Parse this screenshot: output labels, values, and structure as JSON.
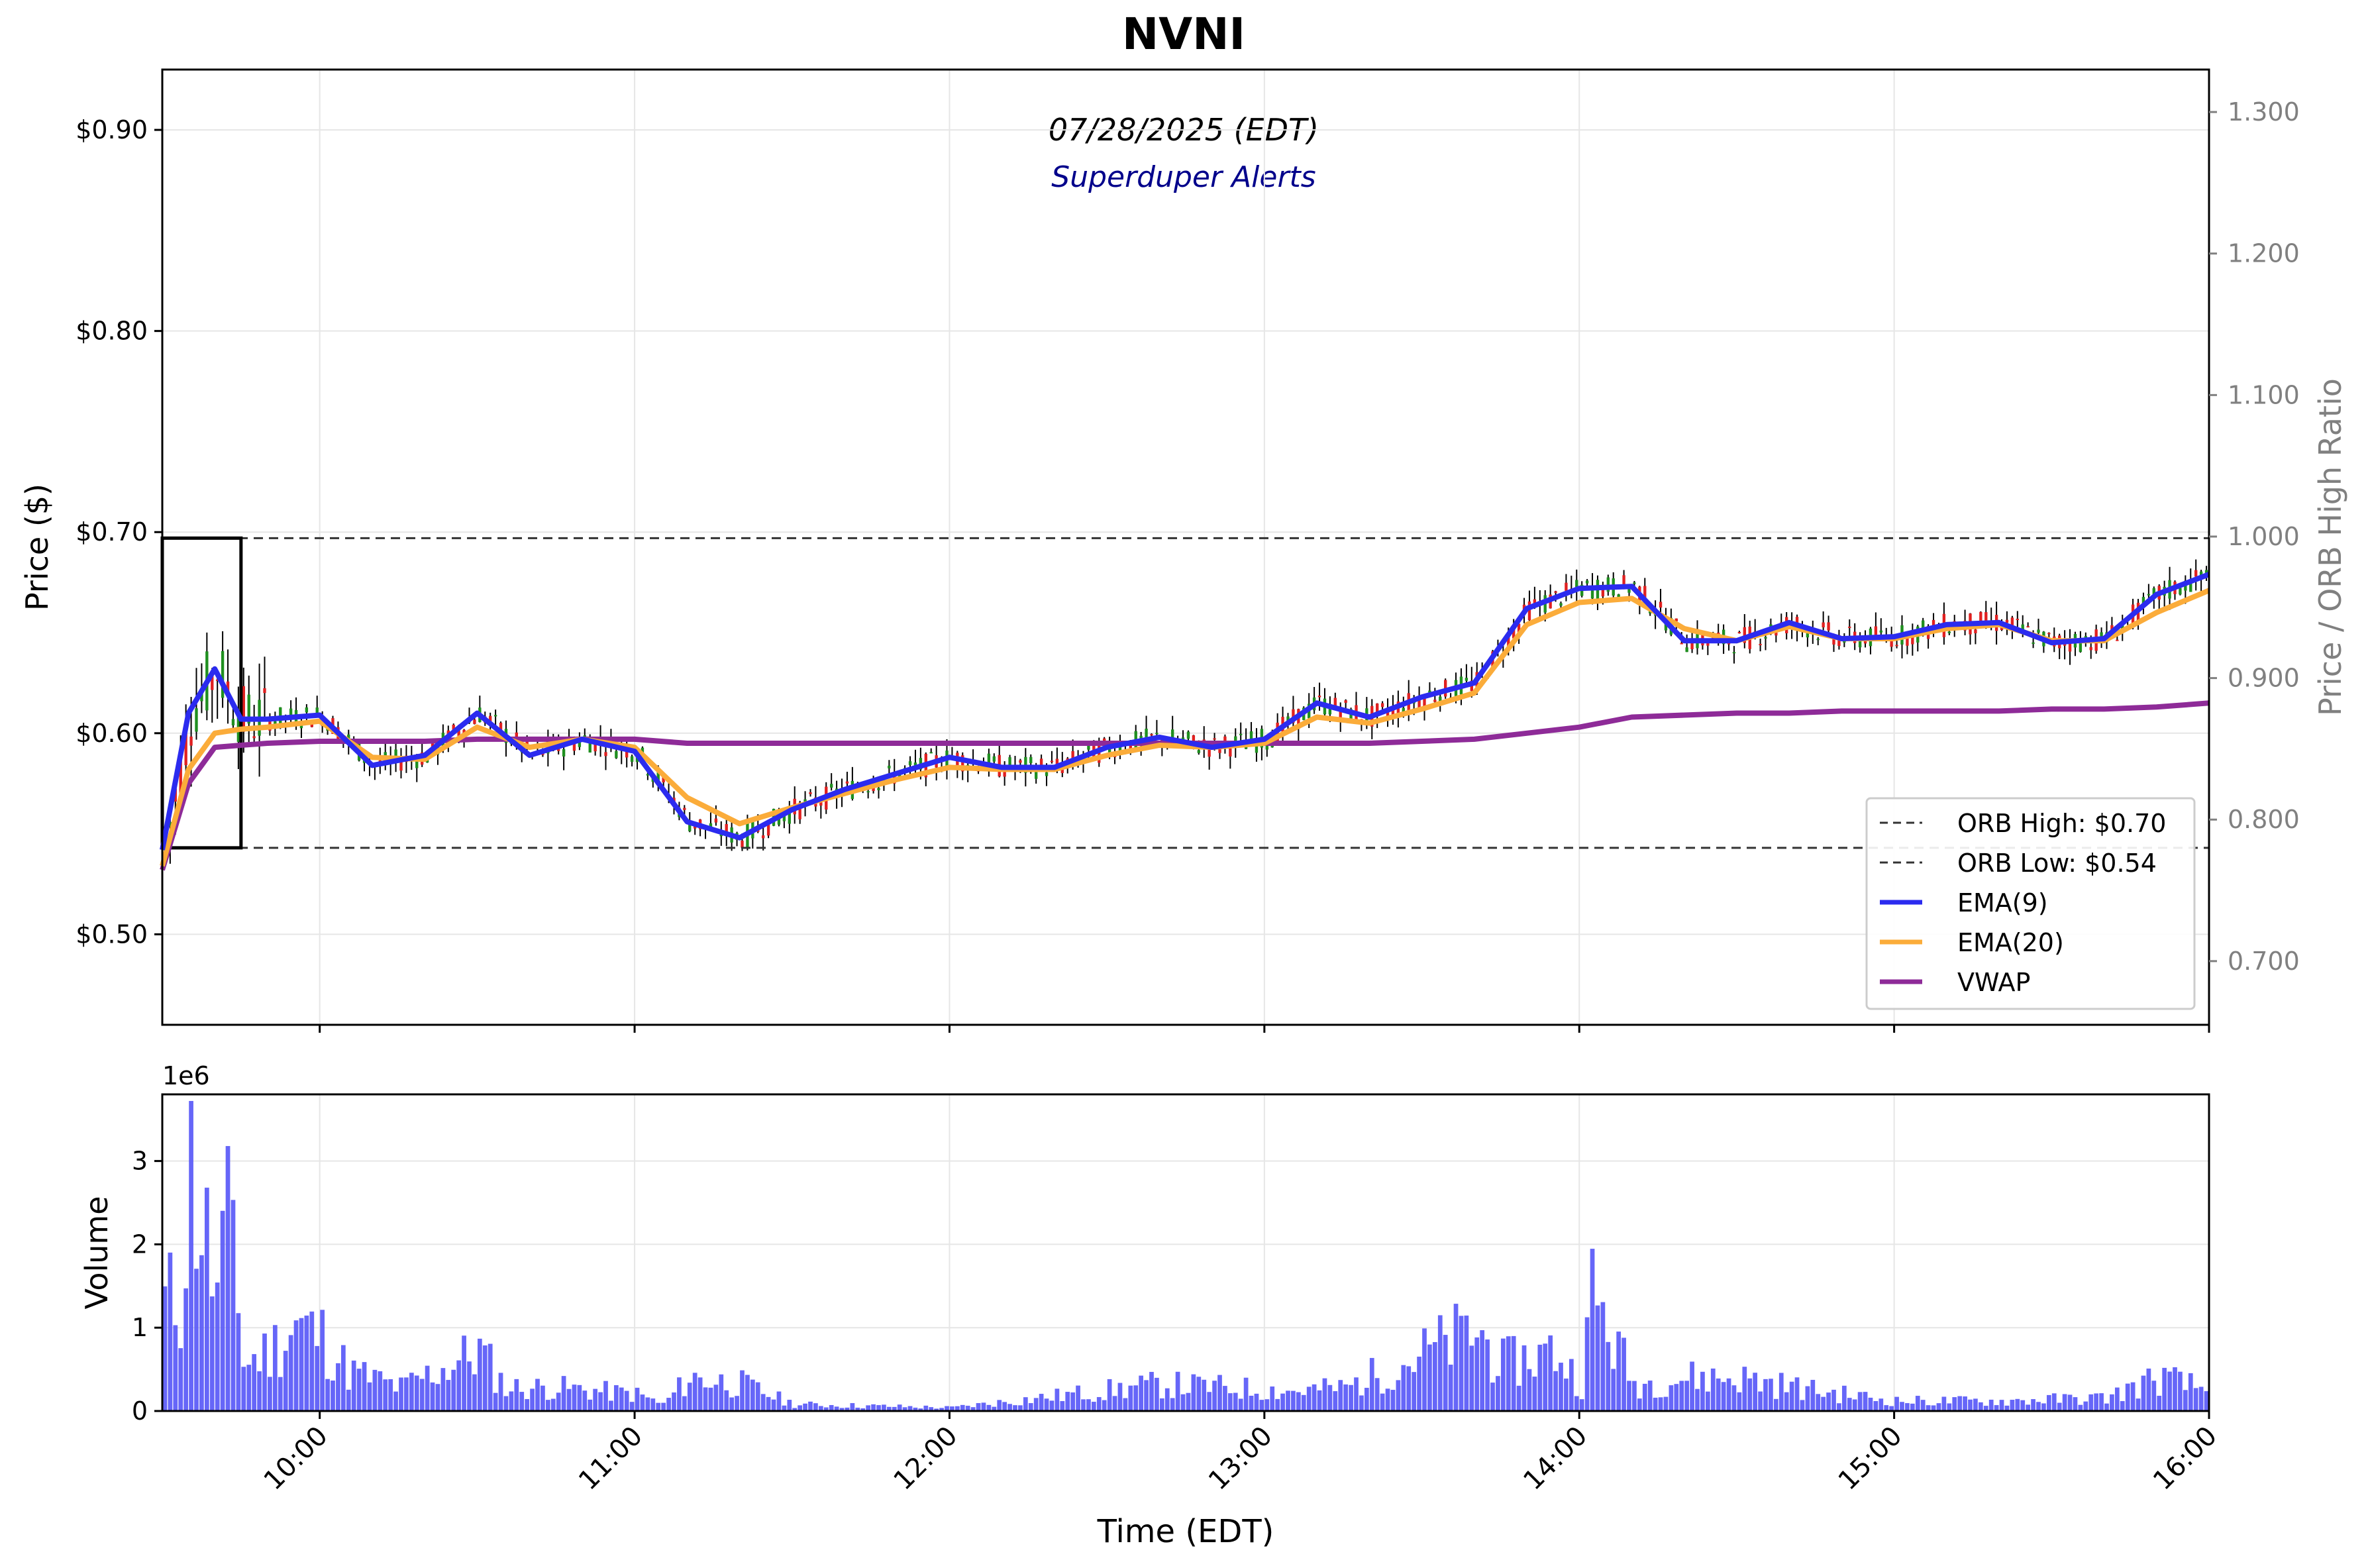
{
  "chart_data": [
    {
      "type": "candlestick",
      "title": "NVNI",
      "subtitle": "07/28/2025 (EDT)",
      "annotation": "Superduper Alerts",
      "xlabel": "Time (EDT)",
      "ylabel": "Price ($)",
      "y2label": "Price / ORB High Ratio",
      "x_range": [
        "09:30",
        "16:00"
      ],
      "ylim": [
        0.455,
        0.93
      ],
      "y2lim": [
        0.655,
        1.33
      ],
      "x_ticks": [
        "10:00",
        "11:00",
        "12:00",
        "13:00",
        "14:00",
        "15:00",
        "16:00"
      ],
      "y_ticks": [
        "$0.50",
        "$0.60",
        "$0.70",
        "$0.80",
        "$0.90"
      ],
      "y2_ticks": [
        "0.700",
        "0.800",
        "0.900",
        "1.000",
        "1.100",
        "1.200",
        "1.300"
      ],
      "grid": true,
      "legend_position": "lower right",
      "opening_range": {
        "start": "09:30",
        "end": "09:45",
        "high": 0.697,
        "low": 0.543
      },
      "hlines": [
        {
          "name": "ORB High: $0.70",
          "value": 0.697,
          "style": "dashed",
          "color": "#333333"
        },
        {
          "name": "ORB Low: $0.54",
          "value": 0.543,
          "style": "dashed",
          "color": "#333333"
        }
      ],
      "series": [
        {
          "name": "EMA(9)",
          "color": "#2b2bef",
          "x": [
            "09:30",
            "09:35",
            "09:40",
            "09:45",
            "09:50",
            "10:00",
            "10:10",
            "10:20",
            "10:30",
            "10:40",
            "10:50",
            "11:00",
            "11:10",
            "11:20",
            "11:30",
            "11:40",
            "11:50",
            "12:00",
            "12:10",
            "12:20",
            "12:30",
            "12:40",
            "12:50",
            "13:00",
            "13:10",
            "13:20",
            "13:30",
            "13:40",
            "13:50",
            "14:00",
            "14:10",
            "14:20",
            "14:30",
            "14:40",
            "14:50",
            "15:00",
            "15:10",
            "15:20",
            "15:30",
            "15:40",
            "15:50",
            "16:00"
          ],
          "values": [
            0.542,
            0.61,
            0.632,
            0.607,
            0.607,
            0.609,
            0.584,
            0.589,
            0.61,
            0.589,
            0.597,
            0.591,
            0.556,
            0.548,
            0.562,
            0.572,
            0.58,
            0.588,
            0.583,
            0.583,
            0.593,
            0.598,
            0.593,
            0.597,
            0.615,
            0.608,
            0.618,
            0.625,
            0.662,
            0.672,
            0.673,
            0.646,
            0.646,
            0.655,
            0.647,
            0.648,
            0.654,
            0.655,
            0.645,
            0.647,
            0.669,
            0.679
          ]
        },
        {
          "name": "EMA(20)",
          "color": "#fbac3a",
          "x": [
            "09:30",
            "09:35",
            "09:40",
            "09:45",
            "09:50",
            "10:00",
            "10:10",
            "10:20",
            "10:30",
            "10:40",
            "10:50",
            "11:00",
            "11:10",
            "11:20",
            "11:30",
            "11:40",
            "11:50",
            "12:00",
            "12:10",
            "12:20",
            "12:30",
            "12:40",
            "12:50",
            "13:00",
            "13:10",
            "13:20",
            "13:30",
            "13:40",
            "13:50",
            "14:00",
            "14:10",
            "14:20",
            "14:30",
            "14:40",
            "14:50",
            "15:00",
            "15:10",
            "15:20",
            "15:30",
            "15:40",
            "15:50",
            "16:00"
          ],
          "values": [
            0.534,
            0.582,
            0.6,
            0.602,
            0.603,
            0.606,
            0.588,
            0.587,
            0.603,
            0.593,
            0.597,
            0.593,
            0.568,
            0.555,
            0.563,
            0.57,
            0.577,
            0.583,
            0.582,
            0.582,
            0.589,
            0.594,
            0.593,
            0.595,
            0.608,
            0.605,
            0.612,
            0.62,
            0.654,
            0.665,
            0.667,
            0.652,
            0.646,
            0.653,
            0.647,
            0.647,
            0.652,
            0.654,
            0.646,
            0.646,
            0.66,
            0.671
          ]
        },
        {
          "name": "VWAP",
          "color": "#8e2b98",
          "x": [
            "09:30",
            "09:35",
            "09:40",
            "09:45",
            "09:50",
            "10:00",
            "10:10",
            "10:20",
            "10:30",
            "10:40",
            "10:50",
            "11:00",
            "11:10",
            "11:20",
            "11:30",
            "11:40",
            "11:50",
            "12:00",
            "12:10",
            "12:20",
            "12:30",
            "12:40",
            "12:50",
            "13:00",
            "13:10",
            "13:20",
            "13:30",
            "13:40",
            "13:50",
            "14:00",
            "14:10",
            "14:20",
            "14:30",
            "14:40",
            "14:50",
            "15:00",
            "15:10",
            "15:20",
            "15:30",
            "15:40",
            "15:50",
            "16:00"
          ],
          "values": [
            0.532,
            0.575,
            0.593,
            0.594,
            0.595,
            0.596,
            0.596,
            0.596,
            0.597,
            0.597,
            0.597,
            0.597,
            0.595,
            0.595,
            0.595,
            0.595,
            0.595,
            0.595,
            0.595,
            0.595,
            0.595,
            0.595,
            0.595,
            0.595,
            0.595,
            0.595,
            0.596,
            0.597,
            0.6,
            0.603,
            0.608,
            0.609,
            0.61,
            0.61,
            0.611,
            0.611,
            0.611,
            0.611,
            0.612,
            0.612,
            0.613,
            0.615
          ]
        }
      ]
    },
    {
      "type": "bar",
      "ylabel": "Volume",
      "scale_label": "1e6",
      "y_ticks": [
        "0",
        "1",
        "2",
        "3"
      ],
      "ylim": [
        0,
        3.8
      ],
      "x_range": [
        "09:30",
        "16:00"
      ],
      "color": "#5555f7",
      "series": [
        {
          "x": [
            "09:30",
            "09:33",
            "09:35",
            "09:37",
            "09:40",
            "09:43",
            "09:45",
            "09:50",
            "09:55",
            "10:00",
            "10:05",
            "10:15",
            "10:30",
            "10:35",
            "10:45",
            "11:00",
            "11:05",
            "11:10",
            "11:20",
            "11:30",
            "12:00",
            "12:40",
            "13:05",
            "13:15",
            "13:40",
            "13:45",
            "13:55",
            "14:00",
            "14:02",
            "14:10",
            "14:20",
            "14:30",
            "14:45",
            "15:00",
            "15:20",
            "15:40",
            "15:50",
            "16:00"
          ],
          "values": [
            1.6,
            1.7,
            3.6,
            2.9,
            1.7,
            3.1,
            0.7,
            0.9,
            1.3,
            1.1,
            0.6,
            0.35,
            0.9,
            0.35,
            0.35,
            0.25,
            0.1,
            0.5,
            0.4,
            0.1,
            0.05,
            0.4,
            0.3,
            0.35,
            1.2,
            0.7,
            0.9,
            0.4,
            1.75,
            0.4,
            0.5,
            0.5,
            0.3,
            0.15,
            0.15,
            0.2,
            0.5,
            0.3
          ]
        }
      ]
    }
  ]
}
